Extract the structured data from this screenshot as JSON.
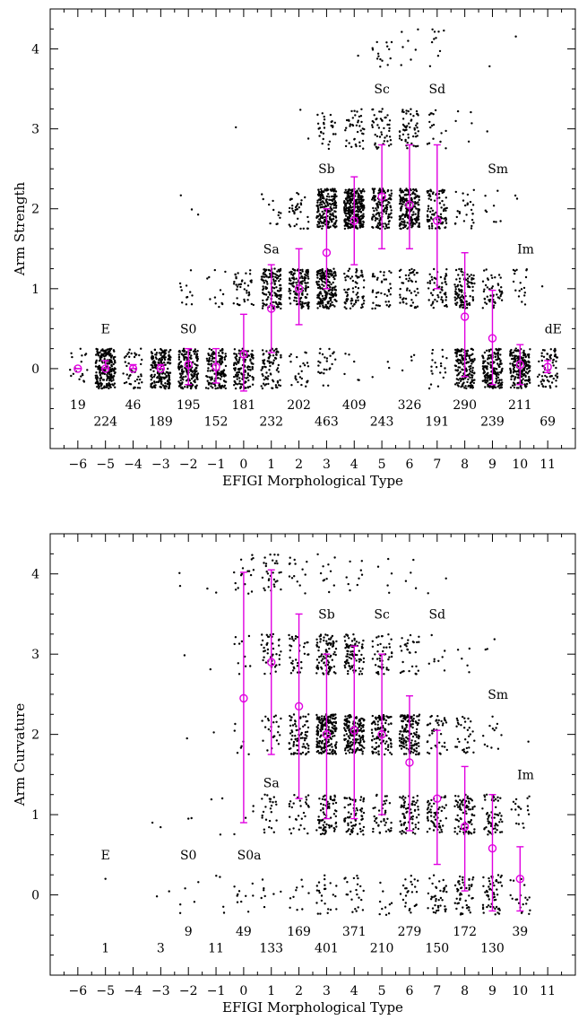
{
  "chart_data": [
    {
      "type": "scatter",
      "panel": "top",
      "title": "",
      "xlabel": "EFIGI Morphological Type",
      "ylabel": "Arm Strength",
      "xlim": [
        -7.0,
        12.0
      ],
      "ylim": [
        -1.0,
        4.5
      ],
      "xticks": [
        -6,
        -5,
        -4,
        -3,
        -2,
        -1,
        0,
        1,
        2,
        3,
        4,
        5,
        6,
        7,
        8,
        9,
        10,
        11
      ],
      "yticks": [
        0,
        1,
        2,
        3,
        4
      ],
      "type_labels": [
        {
          "text": "E",
          "x": -5,
          "y": 0.5
        },
        {
          "text": "S0",
          "x": -2,
          "y": 0.5
        },
        {
          "text": "Sa",
          "x": 1,
          "y": 1.5
        },
        {
          "text": "Sb",
          "x": 3,
          "y": 2.5
        },
        {
          "text": "Sc",
          "x": 5,
          "y": 3.5
        },
        {
          "text": "Sd",
          "x": 7,
          "y": 3.5
        },
        {
          "text": "Sm",
          "x": 9.2,
          "y": 2.5
        },
        {
          "text": "Im",
          "x": 10.2,
          "y": 1.5
        },
        {
          "text": "dE",
          "x": 11.2,
          "y": 0.5
        }
      ],
      "counts": [
        {
          "x": -6,
          "n": "19"
        },
        {
          "x": -5,
          "n": "224"
        },
        {
          "x": -4,
          "n": "46"
        },
        {
          "x": -3,
          "n": "189"
        },
        {
          "x": -2,
          "n": "195"
        },
        {
          "x": -1,
          "n": "152"
        },
        {
          "x": 0,
          "n": "181"
        },
        {
          "x": 1,
          "n": "232"
        },
        {
          "x": 2,
          "n": "202"
        },
        {
          "x": 3,
          "n": "463"
        },
        {
          "x": 4,
          "n": "409"
        },
        {
          "x": 5,
          "n": "243"
        },
        {
          "x": 6,
          "n": "326"
        },
        {
          "x": 7,
          "n": "191"
        },
        {
          "x": 8,
          "n": "290"
        },
        {
          "x": 9,
          "n": "239"
        },
        {
          "x": 10,
          "n": "211"
        },
        {
          "x": 11,
          "n": "69"
        }
      ],
      "bins": [
        {
          "x": -6,
          "n": [
            19,
            0,
            0,
            0,
            0
          ]
        },
        {
          "x": -5,
          "n": [
            224,
            0,
            0,
            0,
            0
          ]
        },
        {
          "x": -4,
          "n": [
            46,
            0,
            0,
            0,
            0
          ]
        },
        {
          "x": -3,
          "n": [
            189,
            0,
            0,
            0,
            0
          ]
        },
        {
          "x": -2,
          "n": [
            180,
            12,
            3,
            0,
            0
          ]
        },
        {
          "x": -1,
          "n": [
            140,
            12,
            0,
            0,
            0
          ]
        },
        {
          "x": 0,
          "n": [
            140,
            40,
            0,
            1,
            0
          ]
        },
        {
          "x": 1,
          "n": [
            80,
            140,
            12,
            0,
            0
          ]
        },
        {
          "x": 2,
          "n": [
            25,
            140,
            35,
            2,
            0
          ]
        },
        {
          "x": 3,
          "n": [
            25,
            200,
            210,
            28,
            0
          ]
        },
        {
          "x": 4,
          "n": [
            6,
            70,
            290,
            40,
            1
          ]
        },
        {
          "x": 5,
          "n": [
            3,
            40,
            140,
            45,
            15
          ]
        },
        {
          "x": 6,
          "n": [
            4,
            50,
            210,
            55,
            7
          ]
        },
        {
          "x": 7,
          "n": [
            20,
            55,
            90,
            16,
            10
          ]
        },
        {
          "x": 8,
          "n": [
            160,
            100,
            25,
            5,
            0
          ]
        },
        {
          "x": 9,
          "n": [
            180,
            50,
            8,
            1,
            1
          ]
        },
        {
          "x": 10,
          "n": [
            190,
            18,
            2,
            0,
            1
          ]
        },
        {
          "x": 11,
          "n": [
            68,
            1,
            0,
            0,
            0
          ]
        }
      ],
      "series": [
        {
          "name": "",
          "x": [
            -6,
            -5,
            -4,
            -3,
            -2,
            -1,
            0,
            1,
            2,
            3,
            4,
            5,
            6,
            7,
            8,
            9,
            10,
            11
          ],
          "mean": [
            0.0,
            0.0,
            0.0,
            0.0,
            0.05,
            0.02,
            0.18,
            0.75,
            1.0,
            1.45,
            1.85,
            2.15,
            2.05,
            1.85,
            0.65,
            0.38,
            0.05,
            0.02
          ],
          "err_low": [
            0.0,
            0.0,
            0.0,
            0.0,
            -0.2,
            -0.18,
            -0.28,
            0.2,
            0.55,
            1.0,
            1.3,
            1.5,
            1.5,
            1.0,
            -0.1,
            -0.2,
            -0.2,
            -0.05
          ],
          "err_high": [
            0.0,
            0.1,
            0.05,
            0.05,
            0.25,
            0.25,
            0.68,
            1.3,
            1.5,
            2.0,
            2.4,
            2.8,
            2.8,
            2.8,
            1.45,
            0.98,
            0.3,
            0.1
          ]
        }
      ],
      "accent_color": "#e000e0"
    },
    {
      "type": "scatter",
      "panel": "bottom",
      "title": "",
      "xlabel": "EFIGI Morphological Type",
      "ylabel": "Arm Curvature",
      "xlim": [
        -7.0,
        12.0
      ],
      "ylim": [
        -1.0,
        4.5
      ],
      "xticks": [
        -6,
        -5,
        -4,
        -3,
        -2,
        -1,
        0,
        1,
        2,
        3,
        4,
        5,
        6,
        7,
        8,
        9,
        10,
        11
      ],
      "yticks": [
        0,
        1,
        2,
        3,
        4
      ],
      "type_labels": [
        {
          "text": "E",
          "x": -5,
          "y": 0.5
        },
        {
          "text": "S0",
          "x": -2,
          "y": 0.5
        },
        {
          "text": "S0a",
          "x": 0.2,
          "y": 0.5
        },
        {
          "text": "Sa",
          "x": 1,
          "y": 1.4
        },
        {
          "text": "Sb",
          "x": 3,
          "y": 3.5
        },
        {
          "text": "Sc",
          "x": 5,
          "y": 3.5
        },
        {
          "text": "Sd",
          "x": 7,
          "y": 3.5
        },
        {
          "text": "Sm",
          "x": 9.2,
          "y": 2.5
        },
        {
          "text": "Im",
          "x": 10.2,
          "y": 1.5
        }
      ],
      "counts": [
        {
          "x": -5,
          "n": "1"
        },
        {
          "x": -3,
          "n": "3"
        },
        {
          "x": -2,
          "n": "9"
        },
        {
          "x": -1,
          "n": "11"
        },
        {
          "x": 0,
          "n": "49"
        },
        {
          "x": 1,
          "n": "133"
        },
        {
          "x": 2,
          "n": "169"
        },
        {
          "x": 3,
          "n": "401"
        },
        {
          "x": 4,
          "n": "371"
        },
        {
          "x": 5,
          "n": "210"
        },
        {
          "x": 6,
          "n": "279"
        },
        {
          "x": 7,
          "n": "150"
        },
        {
          "x": 8,
          "n": "172"
        },
        {
          "x": 9,
          "n": "130"
        },
        {
          "x": 10,
          "n": "39"
        }
      ],
      "bins": [
        {
          "x": -5,
          "n": [
            0,
            0,
            0,
            0,
            0
          ]
        },
        {
          "x": -3,
          "n": [
            2,
            1,
            0,
            0,
            0
          ]
        },
        {
          "x": -2,
          "n": [
            5,
            1,
            1,
            1,
            1
          ]
        },
        {
          "x": -1,
          "n": [
            4,
            3,
            1,
            1,
            2
          ]
        },
        {
          "x": 0,
          "n": [
            10,
            4,
            7,
            10,
            18
          ]
        },
        {
          "x": 1,
          "n": [
            8,
            25,
            25,
            45,
            30
          ]
        },
        {
          "x": 2,
          "n": [
            10,
            30,
            80,
            35,
            14
          ]
        },
        {
          "x": 3,
          "n": [
            25,
            75,
            200,
            90,
            11
          ]
        },
        {
          "x": 4,
          "n": [
            22,
            70,
            180,
            90,
            9
          ]
        },
        {
          "x": 5,
          "n": [
            10,
            40,
            110,
            45,
            5
          ]
        },
        {
          "x": 6,
          "n": [
            25,
            70,
            150,
            30,
            4
          ]
        },
        {
          "x": 7,
          "n": [
            40,
            60,
            40,
            8,
            2
          ]
        },
        {
          "x": 8,
          "n": [
            50,
            85,
            32,
            5,
            0
          ]
        },
        {
          "x": 9,
          "n": [
            55,
            60,
            12,
            3,
            0
          ]
        },
        {
          "x": 10,
          "n": [
            20,
            18,
            1,
            0,
            0
          ]
        }
      ],
      "singles": [
        {
          "x": -5,
          "y": 0.2
        },
        {
          "x": -3.3,
          "y": 0.9
        },
        {
          "x": -2.3,
          "y": 3.85
        },
        {
          "x": -2.0,
          "y": 0.95
        }
      ],
      "series": [
        {
          "name": "",
          "x": [
            0,
            1,
            2,
            3,
            4,
            5,
            6,
            7,
            8,
            9,
            10
          ],
          "mean": [
            2.45,
            2.9,
            2.35,
            2.0,
            2.05,
            2.0,
            1.65,
            1.2,
            0.85,
            0.58,
            0.2
          ],
          "err_low": [
            0.9,
            1.75,
            1.2,
            0.95,
            0.95,
            1.0,
            0.8,
            0.38,
            0.05,
            -0.2,
            -0.2
          ],
          "err_high": [
            4.02,
            4.05,
            3.5,
            3.0,
            3.1,
            3.0,
            2.48,
            2.05,
            1.6,
            1.25,
            0.6
          ]
        }
      ],
      "accent_color": "#e000e0"
    }
  ]
}
